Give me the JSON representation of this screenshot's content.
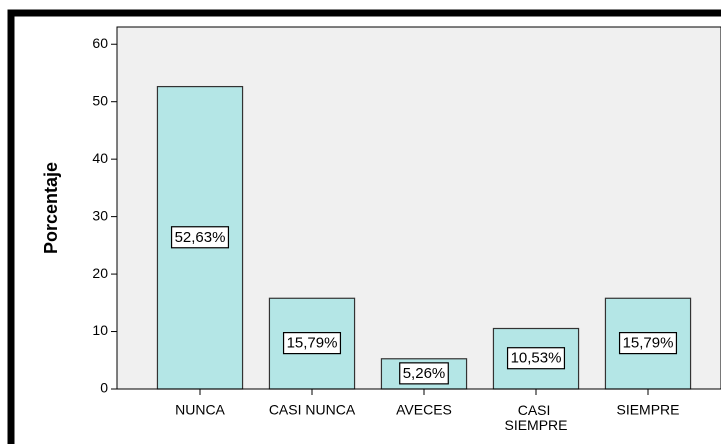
{
  "chart_data": {
    "type": "bar",
    "y_label": "Porcentaje",
    "categories": [
      "NUNCA",
      "CASI NUNCA",
      "AVECES",
      "CASI SIEMPRE",
      "SIEMPRE"
    ],
    "values": [
      52.63,
      15.79,
      5.26,
      10.53,
      15.79
    ],
    "value_labels": [
      "52,63%",
      "15,79%",
      "5,26%",
      "10,53%",
      "15,79%"
    ],
    "color": "#b4e6e6",
    "ylim": [
      0,
      63
    ],
    "yticks": [
      0,
      10,
      20,
      30,
      40,
      50,
      60
    ],
    "grid": false
  }
}
